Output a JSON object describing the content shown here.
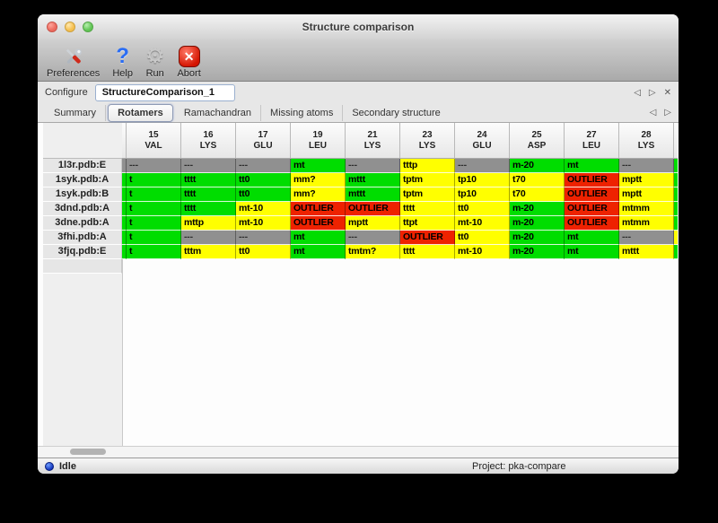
{
  "window": {
    "title": "Structure comparison"
  },
  "toolbar": {
    "items": [
      {
        "label": "Preferences",
        "icon": "preferences-tools-icon"
      },
      {
        "label": "Help",
        "icon": "help-question-icon"
      },
      {
        "label": "Run",
        "icon": "run-gear-icon"
      },
      {
        "label": "Abort",
        "icon": "abort-x-icon"
      }
    ]
  },
  "configure": {
    "label": "Configure",
    "value": "StructureComparison_1",
    "nav": {
      "prev": "◁",
      "next": "▷",
      "close": "✕"
    }
  },
  "tabs": {
    "items": [
      "Summary",
      "Rotamers",
      "Ramachandran",
      "Missing atoms",
      "Secondary structure"
    ],
    "active": "Rotamers",
    "nav": {
      "prev": "◁",
      "next": "▷"
    }
  },
  "colors": {
    "green": "#00dd00",
    "yellow": "#ffff00",
    "red": "#ee2200",
    "gray": "#909090"
  },
  "table": {
    "columns": [
      {
        "num": "15",
        "res": "VAL"
      },
      {
        "num": "16",
        "res": "LYS"
      },
      {
        "num": "17",
        "res": "GLU"
      },
      {
        "num": "19",
        "res": "LEU"
      },
      {
        "num": "21",
        "res": "LYS"
      },
      {
        "num": "23",
        "res": "LYS"
      },
      {
        "num": "24",
        "res": "GLU"
      },
      {
        "num": "25",
        "res": "ASP"
      },
      {
        "num": "27",
        "res": "LEU"
      },
      {
        "num": "28",
        "res": "LYS"
      }
    ],
    "rows": [
      {
        "name": "1l3r.pdb:E",
        "left": "gray",
        "right": "green",
        "cells": [
          {
            "t": "---",
            "c": "gray"
          },
          {
            "t": "---",
            "c": "gray"
          },
          {
            "t": "---",
            "c": "gray"
          },
          {
            "t": "mt",
            "c": "green"
          },
          {
            "t": "---",
            "c": "gray"
          },
          {
            "t": "tttp",
            "c": "yellow"
          },
          {
            "t": "---",
            "c": "gray"
          },
          {
            "t": "m-20",
            "c": "green"
          },
          {
            "t": "mt",
            "c": "green"
          },
          {
            "t": "---",
            "c": "gray"
          }
        ]
      },
      {
        "name": "1syk.pdb:A",
        "left": "green",
        "right": "green",
        "cells": [
          {
            "t": "t",
            "c": "green"
          },
          {
            "t": "tttt",
            "c": "green"
          },
          {
            "t": "tt0",
            "c": "green"
          },
          {
            "t": "mm?",
            "c": "yellow"
          },
          {
            "t": "mttt",
            "c": "green"
          },
          {
            "t": "tptm",
            "c": "yellow"
          },
          {
            "t": "tp10",
            "c": "yellow"
          },
          {
            "t": "t70",
            "c": "yellow"
          },
          {
            "t": "OUTLIER",
            "c": "red"
          },
          {
            "t": "mptt",
            "c": "yellow"
          }
        ]
      },
      {
        "name": "1syk.pdb:B",
        "left": "green",
        "right": "green",
        "cells": [
          {
            "t": "t",
            "c": "green"
          },
          {
            "t": "tttt",
            "c": "green"
          },
          {
            "t": "tt0",
            "c": "green"
          },
          {
            "t": "mm?",
            "c": "yellow"
          },
          {
            "t": "mttt",
            "c": "green"
          },
          {
            "t": "tptm",
            "c": "yellow"
          },
          {
            "t": "tp10",
            "c": "yellow"
          },
          {
            "t": "t70",
            "c": "yellow"
          },
          {
            "t": "OUTLIER",
            "c": "red"
          },
          {
            "t": "mptt",
            "c": "yellow"
          }
        ]
      },
      {
        "name": "3dnd.pdb:A",
        "left": "green",
        "right": "green",
        "cells": [
          {
            "t": "t",
            "c": "green"
          },
          {
            "t": "tttt",
            "c": "green"
          },
          {
            "t": "mt-10",
            "c": "yellow"
          },
          {
            "t": "OUTLIER",
            "c": "red"
          },
          {
            "t": "OUTLIER",
            "c": "red"
          },
          {
            "t": "tttt",
            "c": "yellow"
          },
          {
            "t": "tt0",
            "c": "yellow"
          },
          {
            "t": "m-20",
            "c": "green"
          },
          {
            "t": "OUTLIER",
            "c": "red"
          },
          {
            "t": "mtmm",
            "c": "yellow"
          }
        ]
      },
      {
        "name": "3dne.pdb:A",
        "left": "green",
        "right": "green",
        "cells": [
          {
            "t": "t",
            "c": "green"
          },
          {
            "t": "mttp",
            "c": "yellow"
          },
          {
            "t": "mt-10",
            "c": "yellow"
          },
          {
            "t": "OUTLIER",
            "c": "red"
          },
          {
            "t": "mptt",
            "c": "yellow"
          },
          {
            "t": "ttpt",
            "c": "yellow"
          },
          {
            "t": "mt-10",
            "c": "yellow"
          },
          {
            "t": "m-20",
            "c": "green"
          },
          {
            "t": "OUTLIER",
            "c": "red"
          },
          {
            "t": "mtmm",
            "c": "yellow"
          }
        ]
      },
      {
        "name": "3fhi.pdb:A",
        "left": "green",
        "right": "yellow",
        "cells": [
          {
            "t": "t",
            "c": "green"
          },
          {
            "t": "---",
            "c": "gray"
          },
          {
            "t": "---",
            "c": "gray"
          },
          {
            "t": "mt",
            "c": "green"
          },
          {
            "t": "---",
            "c": "gray"
          },
          {
            "t": "OUTLIER",
            "c": "red"
          },
          {
            "t": "tt0",
            "c": "yellow"
          },
          {
            "t": "m-20",
            "c": "green"
          },
          {
            "t": "mt",
            "c": "green"
          },
          {
            "t": "---",
            "c": "gray"
          }
        ]
      },
      {
        "name": "3fjq.pdb:E",
        "left": "green",
        "right": "green",
        "cells": [
          {
            "t": "t",
            "c": "green"
          },
          {
            "t": "tttm",
            "c": "yellow"
          },
          {
            "t": "tt0",
            "c": "yellow"
          },
          {
            "t": "mt",
            "c": "green"
          },
          {
            "t": "tmtm?",
            "c": "yellow"
          },
          {
            "t": "tttt",
            "c": "yellow"
          },
          {
            "t": "mt-10",
            "c": "yellow"
          },
          {
            "t": "m-20",
            "c": "green"
          },
          {
            "t": "mt",
            "c": "green"
          },
          {
            "t": "mttt",
            "c": "yellow"
          }
        ]
      }
    ]
  },
  "status": {
    "state": "Idle",
    "project": "Project: pka-compare"
  }
}
